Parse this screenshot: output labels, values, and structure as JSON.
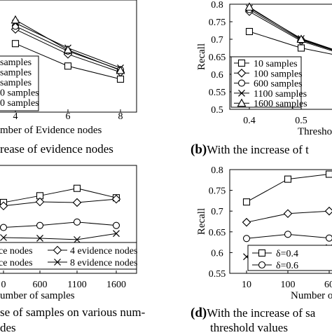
{
  "chart_data": [
    {
      "panel": "a",
      "type": "line",
      "caption": "rease of evidence nodes",
      "xlabel": "mber of Evidence nodes",
      "ylabel": "",
      "x": [
        4,
        6,
        8
      ],
      "xtick_labels": [
        "4",
        "6",
        "8"
      ],
      "legend_labels": [
        "samples",
        "samples",
        "samples",
        "0 samples",
        "0 samples"
      ],
      "series": [
        {
          "marker": "square",
          "values": [
            0.71,
            0.674,
            0.653
          ]
        },
        {
          "marker": "diamond",
          "values": [
            0.733,
            0.693,
            0.664
          ]
        },
        {
          "marker": "circle",
          "values": [
            0.738,
            0.698,
            0.668
          ]
        },
        {
          "marker": "x",
          "values": [
            0.743,
            0.703,
            0.671
          ]
        },
        {
          "marker": "triangle",
          "values": [
            0.748,
            0.7,
            0.667
          ]
        }
      ]
    },
    {
      "panel": "b",
      "type": "line",
      "caption_tag": "(b)",
      "caption": "With the increase of t",
      "ylabel": "Recall",
      "xlabel": "Thresho",
      "ylim": [
        0.5,
        0.8
      ],
      "yticks": [
        "0.8",
        "0.75",
        "0.7",
        "0.65",
        "0.6",
        "0.55",
        "0.5"
      ],
      "x": [
        0.4,
        0.5,
        0.6
      ],
      "xtick_labels": [
        "0.4",
        "0.5"
      ],
      "series": [
        {
          "name": "10 samples",
          "marker": "square",
          "values": [
            0.722,
            0.675,
            0.645
          ]
        },
        {
          "name": "100 samples",
          "marker": "diamond",
          "values": [
            0.779,
            0.695,
            0.648
          ]
        },
        {
          "name": "600 samples",
          "marker": "circle",
          "values": [
            0.785,
            0.698,
            0.65
          ]
        },
        {
          "name": "1100 samples",
          "marker": "x",
          "values": [
            0.789,
            0.702,
            0.652
          ]
        },
        {
          "name": "1600 samples",
          "marker": "triangle",
          "values": [
            0.792,
            0.7,
            0.651
          ]
        }
      ]
    },
    {
      "panel": "c",
      "type": "line",
      "caption": "se of samples on various num-",
      "caption2": "des",
      "xlabel": "umber of samples",
      "x": [
        100,
        600,
        1100,
        1600
      ],
      "xtick_labels": [
        "0",
        "600",
        "1100",
        "1600"
      ],
      "series": [
        {
          "name": "ce nodes",
          "marker": "square",
          "values": [
            0.765,
            0.775,
            0.786,
            0.772
          ]
        },
        {
          "name": "4 evidence nodes",
          "marker": "diamond",
          "values": [
            0.76,
            0.766,
            0.765,
            0.77
          ]
        },
        {
          "name": "ce nodes",
          "marker": "circle",
          "values": [
            0.728,
            0.731,
            0.736,
            0.731
          ]
        },
        {
          "name": "8 evidence nodes",
          "marker": "x",
          "values": [
            0.713,
            0.712,
            0.71,
            0.719
          ]
        }
      ]
    },
    {
      "panel": "d",
      "type": "line",
      "caption_tag": "(d)",
      "caption": "With the increase of sa",
      "caption2": "threshold values",
      "ylabel": "Recall",
      "xlabel": "Number of",
      "ylim": [
        0.55,
        0.8
      ],
      "yticks": [
        "0.8",
        "0.75",
        "0.7",
        "0.65",
        "0.6",
        "0.55"
      ],
      "x": [
        10,
        100,
        600
      ],
      "xtick_labels": [
        "10",
        "100",
        "60"
      ],
      "series": [
        {
          "name": "δ=0.4",
          "marker": "square",
          "values": [
            0.722,
            0.777,
            0.789
          ]
        },
        {
          "name": "",
          "marker": "diamond",
          "values": [
            0.673,
            0.694,
            0.7
          ]
        },
        {
          "name": "δ=0.6",
          "marker": "circle",
          "values": [
            0.634,
            0.644,
            0.635
          ]
        },
        {
          "name": "",
          "marker": "x",
          "values": [
            0.59,
            0.6,
            0.612
          ]
        }
      ]
    }
  ]
}
